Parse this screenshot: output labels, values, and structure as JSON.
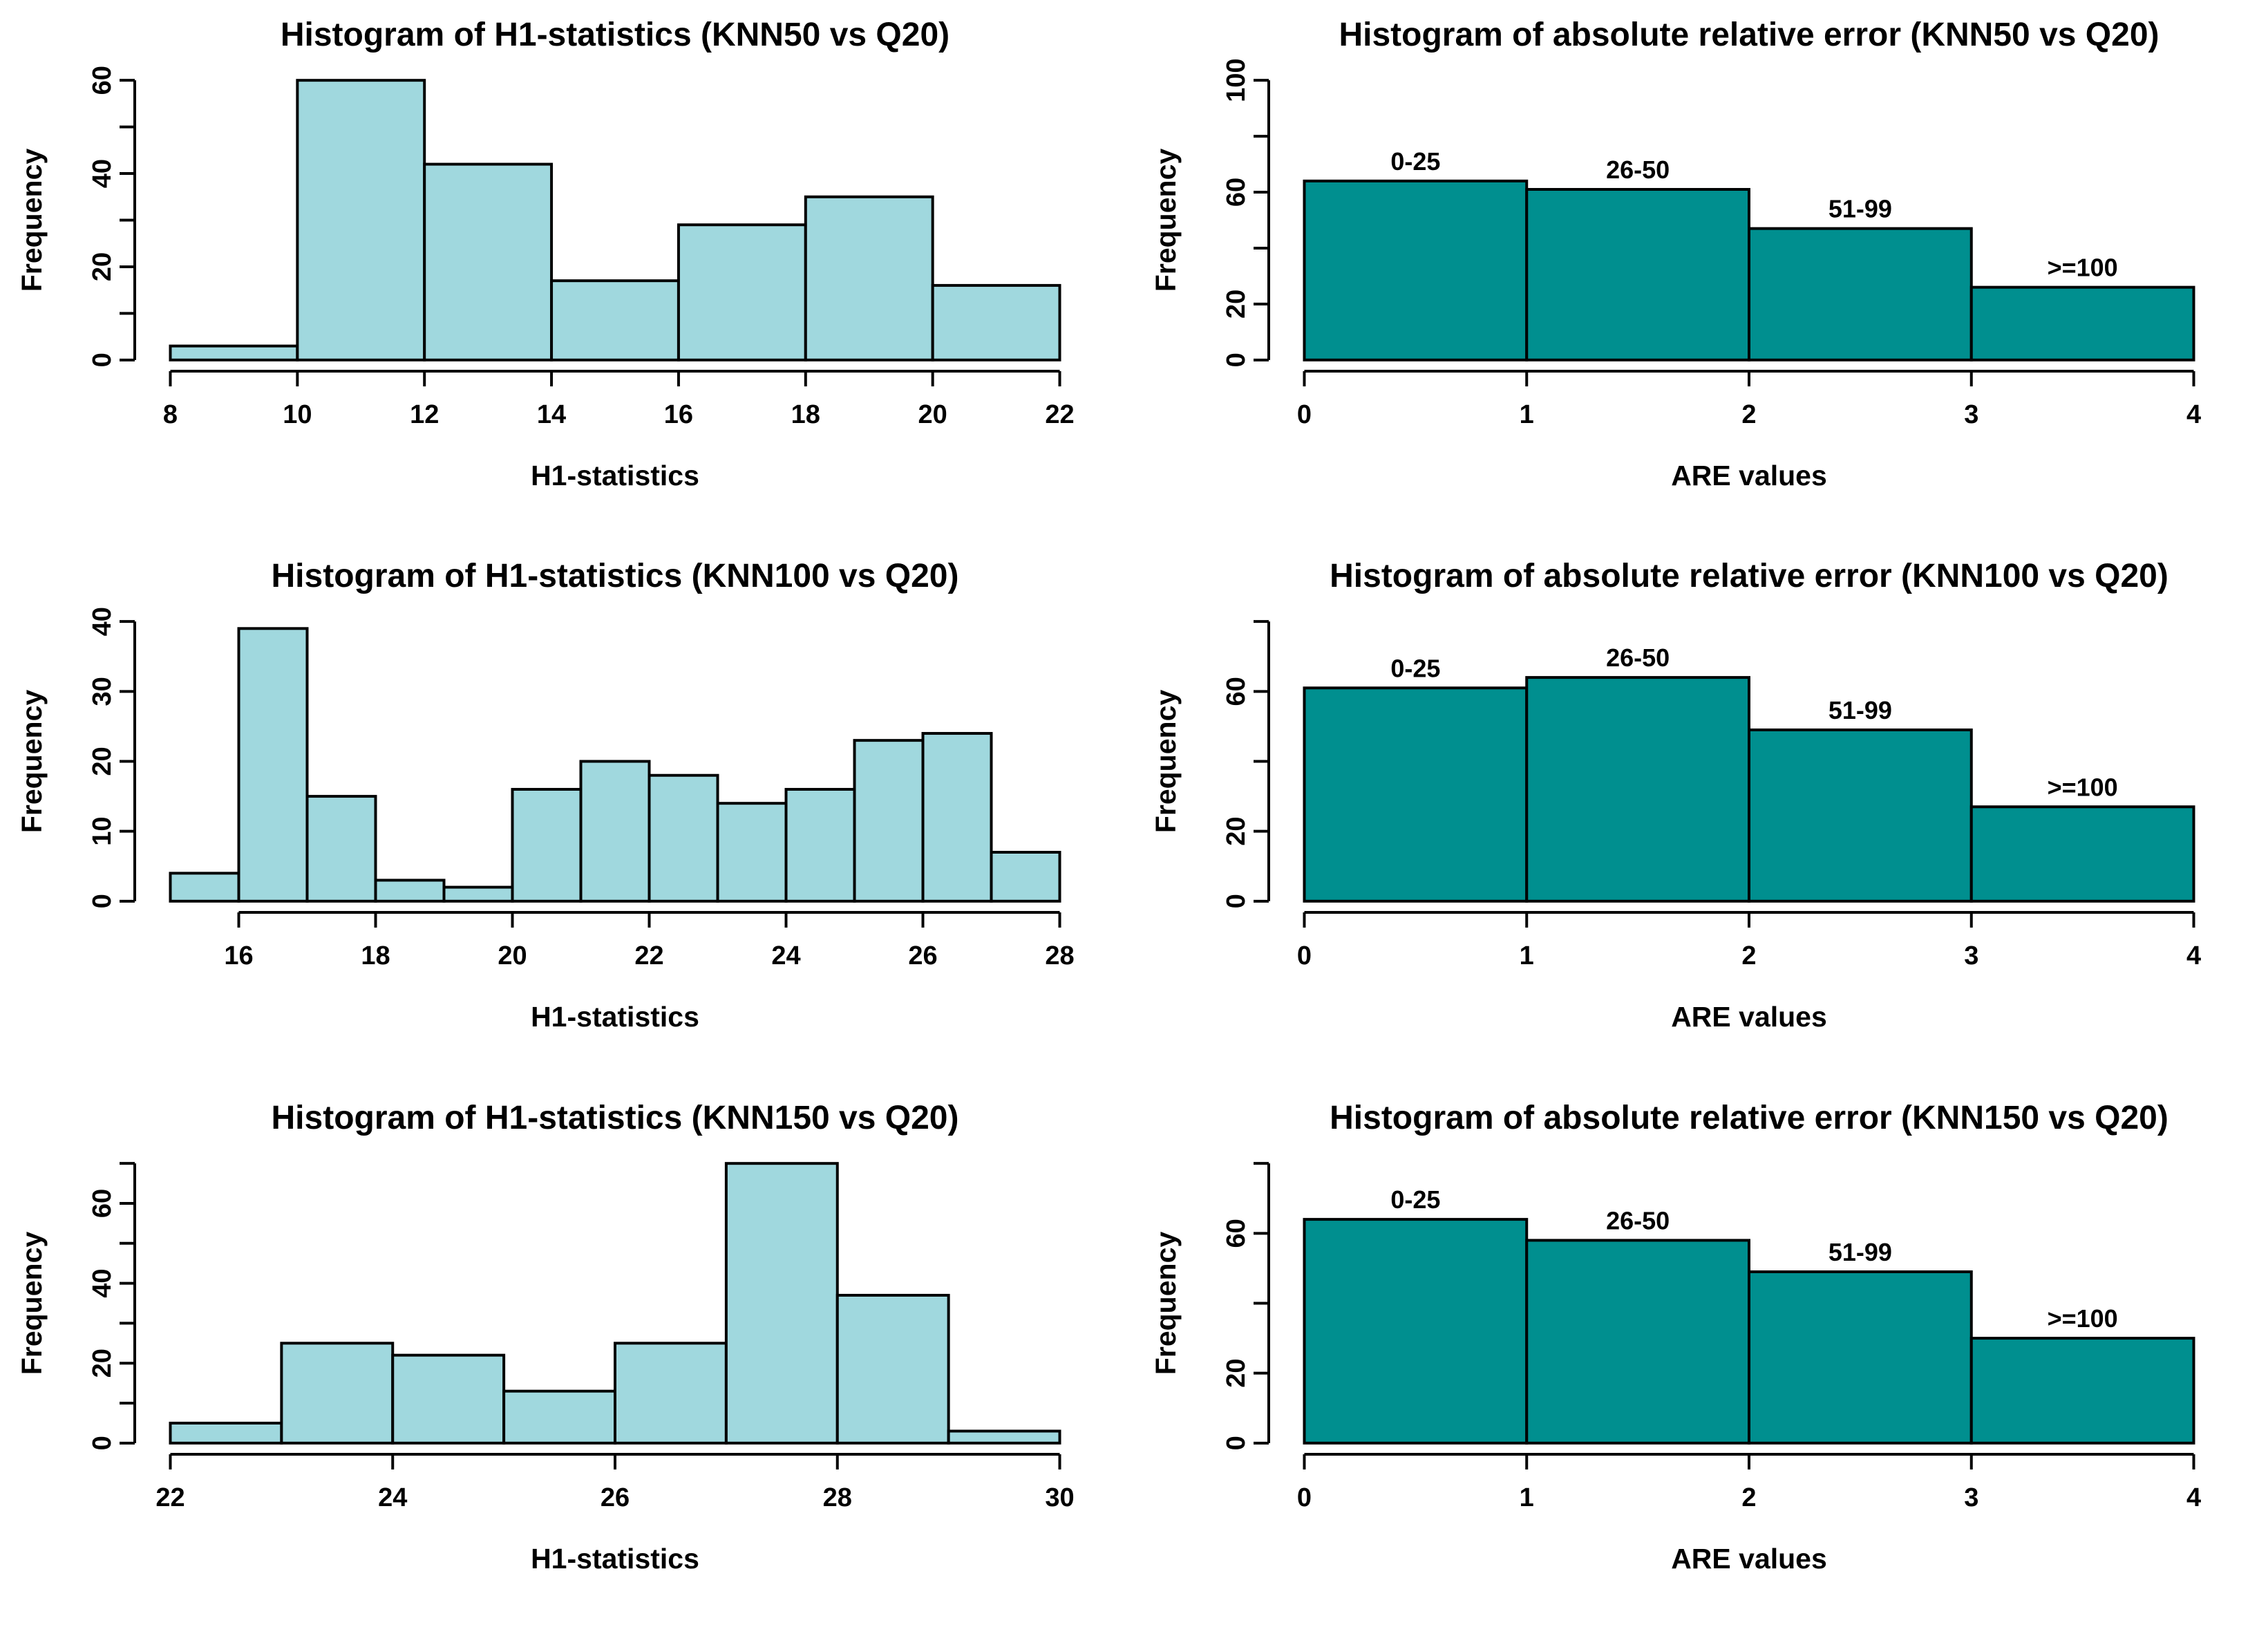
{
  "figure": {
    "background": "#ffffff",
    "axis_color": "#000000",
    "text_color": "#000000",
    "bar_edge_color": "#000000",
    "layout": "3 rows x 2 columns of base-R style histograms"
  },
  "chart_data": [
    {
      "id": "h1-knn50",
      "type": "bar",
      "title": "Histogram of H1-statistics (KNN50 vs Q20)",
      "xlabel": "H1-statistics",
      "ylabel": "Frequency",
      "bar_color": "#A0D8DE",
      "bin_start": 8,
      "bin_width": 2,
      "values": [
        3,
        60,
        42,
        17,
        29,
        35,
        16
      ],
      "bar_labels": null,
      "x_ticks": [
        8,
        10,
        12,
        14,
        16,
        18,
        20,
        22
      ],
      "x_range": [
        8,
        22
      ],
      "y_ticks": [
        0,
        10,
        20,
        30,
        40,
        50,
        60
      ],
      "y_labeled_ticks": [
        0,
        20,
        40,
        60
      ],
      "y_max": 60,
      "grid": "off",
      "legend": "none"
    },
    {
      "id": "are-knn50",
      "type": "bar",
      "title": "Histogram of absolute relative error (KNN50 vs Q20)",
      "xlabel": "ARE values",
      "ylabel": "Frequency",
      "bar_color": "#008F8F",
      "bin_start": 0,
      "bin_width": 1,
      "values": [
        64,
        61,
        47,
        26
      ],
      "bar_labels": [
        "0-25",
        "26-50",
        "51-99",
        ">=100"
      ],
      "x_ticks": [
        0,
        1,
        2,
        3,
        4
      ],
      "x_range": [
        0,
        4
      ],
      "y_ticks": [
        0,
        20,
        40,
        60,
        80,
        100
      ],
      "y_labeled_ticks": [
        0,
        20,
        60,
        100
      ],
      "y_max": 100,
      "grid": "off",
      "legend": "none"
    },
    {
      "id": "h1-knn100",
      "type": "bar",
      "title": "Histogram of H1-statistics (KNN100 vs Q20)",
      "xlabel": "H1-statistics",
      "ylabel": "Frequency",
      "bar_color": "#A0D8DE",
      "bin_start": 15,
      "bin_width": 1,
      "values": [
        4,
        39,
        15,
        3,
        2,
        16,
        20,
        18,
        14,
        16,
        23,
        24,
        7
      ],
      "bar_labels": null,
      "x_ticks": [
        16,
        18,
        20,
        22,
        24,
        26,
        28
      ],
      "x_range": [
        15,
        28
      ],
      "y_ticks": [
        0,
        10,
        20,
        30,
        40
      ],
      "y_labeled_ticks": [
        0,
        10,
        20,
        30,
        40
      ],
      "y_max": 40,
      "grid": "off",
      "legend": "none"
    },
    {
      "id": "are-knn100",
      "type": "bar",
      "title": "Histogram of absolute relative error (KNN100 vs Q20)",
      "xlabel": "ARE values",
      "ylabel": "Frequency",
      "bar_color": "#008F8F",
      "bin_start": 0,
      "bin_width": 1,
      "values": [
        61,
        64,
        49,
        27
      ],
      "bar_labels": [
        "0-25",
        "26-50",
        "51-99",
        ">=100"
      ],
      "x_ticks": [
        0,
        1,
        2,
        3,
        4
      ],
      "x_range": [
        0,
        4
      ],
      "y_ticks": [
        0,
        20,
        40,
        60,
        80
      ],
      "y_labeled_ticks": [
        0,
        20,
        60
      ],
      "y_max": 80,
      "grid": "off",
      "legend": "none"
    },
    {
      "id": "h1-knn150",
      "type": "bar",
      "title": "Histogram of H1-statistics (KNN150 vs Q20)",
      "xlabel": "H1-statistics",
      "ylabel": "Frequency",
      "bar_color": "#A0D8DE",
      "bin_start": 22,
      "bin_width": 1,
      "values": [
        5,
        25,
        22,
        13,
        25,
        70,
        37,
        3
      ],
      "bar_labels": null,
      "x_ticks": [
        22,
        24,
        26,
        28,
        30
      ],
      "x_range": [
        22,
        30
      ],
      "y_ticks": [
        0,
        10,
        20,
        30,
        40,
        50,
        60,
        70
      ],
      "y_labeled_ticks": [
        0,
        20,
        40,
        60
      ],
      "y_max": 70,
      "grid": "off",
      "legend": "none"
    },
    {
      "id": "are-knn150",
      "type": "bar",
      "title": "Histogram of absolute relative error (KNN150 vs Q20)",
      "xlabel": "ARE values",
      "ylabel": "Frequency",
      "bar_color": "#008F8F",
      "bin_start": 0,
      "bin_width": 1,
      "values": [
        64,
        58,
        49,
        30
      ],
      "bar_labels": [
        "0-25",
        "26-50",
        "51-99",
        ">=100"
      ],
      "x_ticks": [
        0,
        1,
        2,
        3,
        4
      ],
      "x_range": [
        0,
        4
      ],
      "y_ticks": [
        0,
        20,
        40,
        60,
        80
      ],
      "y_labeled_ticks": [
        0,
        20,
        60
      ],
      "y_max": 80,
      "grid": "off",
      "legend": "none"
    }
  ]
}
